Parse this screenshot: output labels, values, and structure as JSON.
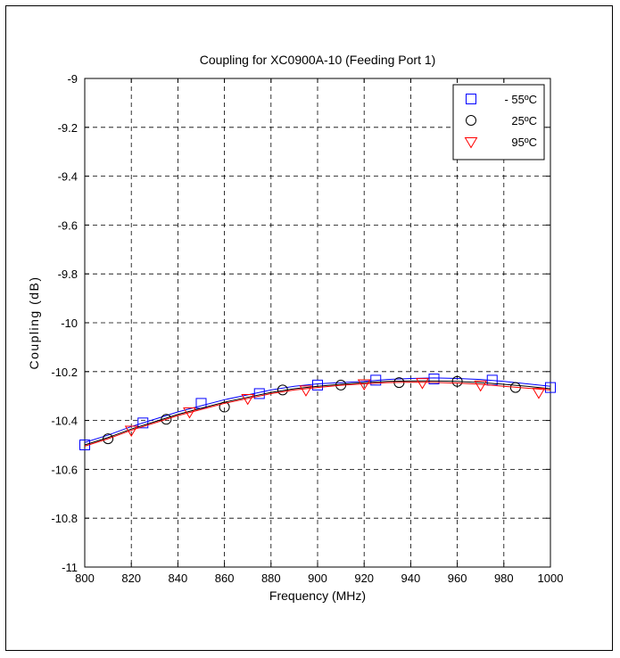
{
  "chart_data": {
    "type": "line",
    "title": "Coupling for XC0900A-10 (Feeding Port 1)",
    "xlabel": "Frequency (MHz)",
    "ylabel": "Coupling (dB)",
    "xlim": [
      800,
      1000
    ],
    "ylim": [
      -11,
      -9
    ],
    "grid": true,
    "legend_position": "top-right",
    "x_ticks": [
      "800",
      "820",
      "840",
      "860",
      "880",
      "900",
      "920",
      "940",
      "960",
      "980",
      "1000"
    ],
    "y_ticks": [
      "-9",
      "-9.2",
      "-9.4",
      "-9.6",
      "-9.8",
      "-10",
      "-10.2",
      "-10.4",
      "-10.6",
      "-10.8",
      "-11"
    ],
    "series": [
      {
        "name": "- 55ºC",
        "color": "#0000ff",
        "marker": "square",
        "line": {
          "x": [
            800,
            810,
            820,
            830,
            840,
            850,
            860,
            870,
            880,
            890,
            900,
            910,
            920,
            930,
            940,
            950,
            960,
            970,
            980,
            990,
            1000
          ],
          "y": [
            -10.49,
            -10.46,
            -10.425,
            -10.395,
            -10.365,
            -10.34,
            -10.315,
            -10.295,
            -10.275,
            -10.26,
            -10.25,
            -10.245,
            -10.24,
            -10.232,
            -10.228,
            -10.226,
            -10.228,
            -10.232,
            -10.24,
            -10.25,
            -10.26
          ]
        },
        "markers": {
          "x": [
            800,
            825,
            850,
            875,
            900,
            925,
            950,
            975,
            1000
          ],
          "y": [
            -10.5,
            -10.41,
            -10.33,
            -10.29,
            -10.255,
            -10.235,
            -10.23,
            -10.235,
            -10.265
          ]
        }
      },
      {
        "name": "25ºC",
        "color": "#000000",
        "marker": "circle",
        "line": {
          "x": [
            800,
            810,
            820,
            830,
            840,
            850,
            860,
            870,
            880,
            890,
            900,
            910,
            920,
            930,
            940,
            950,
            960,
            970,
            980,
            990,
            1000
          ],
          "y": [
            -10.5,
            -10.47,
            -10.435,
            -10.405,
            -10.375,
            -10.35,
            -10.325,
            -10.305,
            -10.285,
            -10.27,
            -10.26,
            -10.252,
            -10.245,
            -10.24,
            -10.238,
            -10.238,
            -10.24,
            -10.245,
            -10.252,
            -10.26,
            -10.27
          ]
        },
        "markers": {
          "x": [
            810,
            835,
            860,
            885,
            910,
            935,
            960,
            985
          ],
          "y": [
            -10.475,
            -10.395,
            -10.345,
            -10.275,
            -10.255,
            -10.245,
            -10.24,
            -10.265
          ]
        }
      },
      {
        "name": "95ºC",
        "color": "#ff0000",
        "marker": "triangle-down",
        "line": {
          "x": [
            800,
            810,
            820,
            830,
            840,
            850,
            860,
            870,
            880,
            890,
            900,
            910,
            920,
            930,
            940,
            950,
            960,
            970,
            980,
            990,
            1000
          ],
          "y": [
            -10.505,
            -10.475,
            -10.44,
            -10.41,
            -10.38,
            -10.355,
            -10.33,
            -10.31,
            -10.29,
            -10.275,
            -10.265,
            -10.256,
            -10.25,
            -10.245,
            -10.243,
            -10.244,
            -10.247,
            -10.252,
            -10.26,
            -10.268,
            -10.275
          ]
        },
        "markers": {
          "x": [
            820,
            845,
            870,
            895,
            920,
            945,
            970,
            995
          ],
          "y": [
            -10.44,
            -10.365,
            -10.31,
            -10.275,
            -10.25,
            -10.245,
            -10.255,
            -10.285
          ]
        }
      }
    ]
  }
}
